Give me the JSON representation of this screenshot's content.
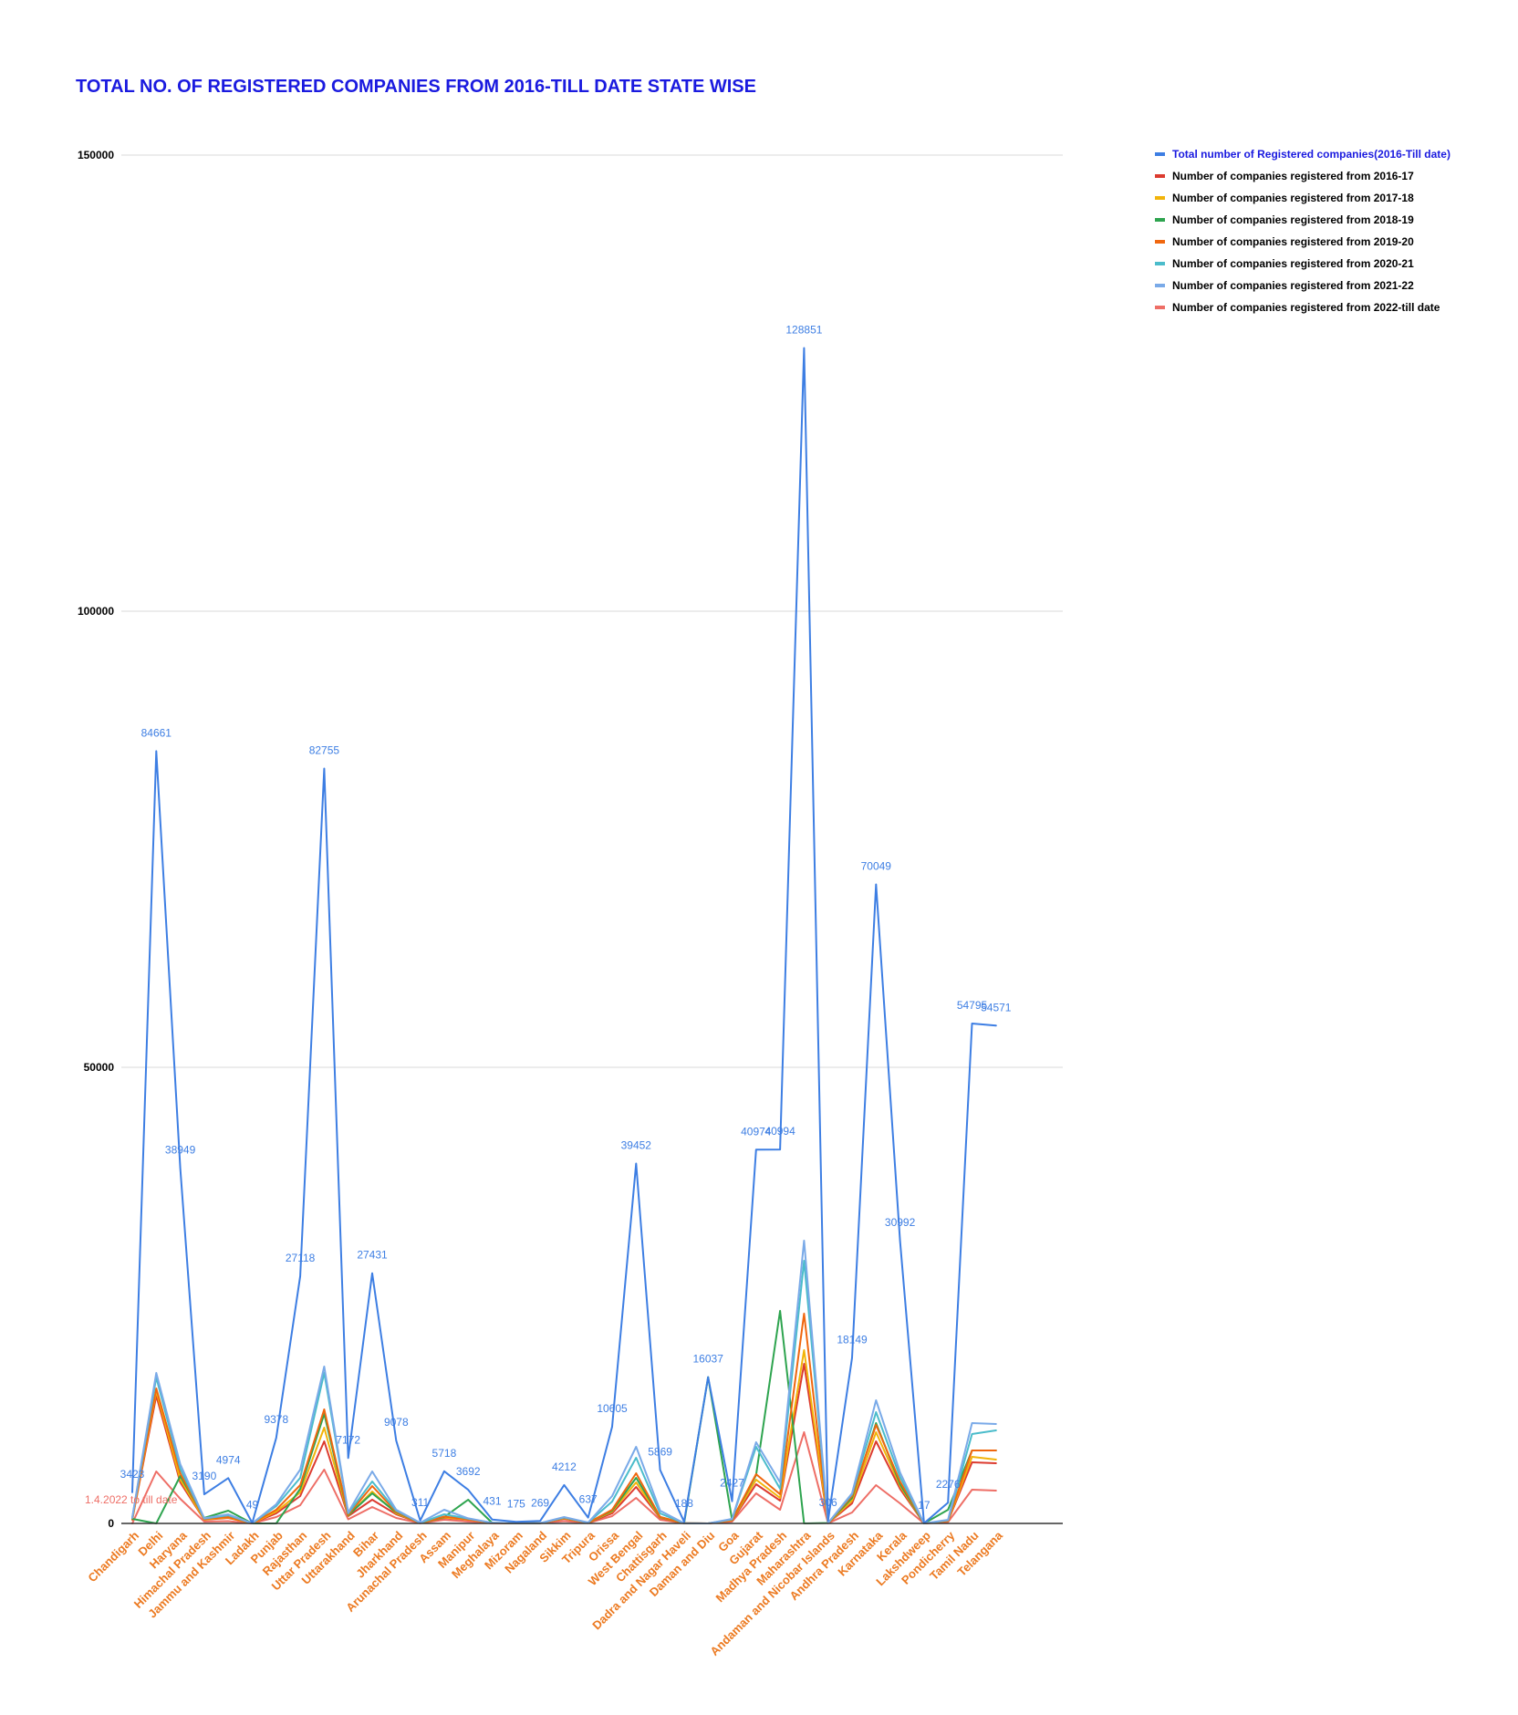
{
  "chart_data": {
    "type": "line",
    "title": "TOTAL NO. OF REGISTERED COMPANIES FROM 2016-TILL DATE STATE WISE",
    "ylim": [
      0,
      150000
    ],
    "yticks": [
      "0",
      "50000",
      "100000",
      "150000"
    ],
    "grid": true,
    "legend_position": "right-top",
    "colors": {
      "title": "#1a1adf",
      "xtick": "#ec7a21",
      "ytick": "#000000",
      "grid": "#d9d9d9",
      "axis": "#333333"
    },
    "categories": [
      "Chandigarh",
      "Delhi",
      "Haryana",
      "Himachal Pradesh",
      "Jammu and Kashmir",
      "Ladakh",
      "Punjab",
      "Rajasthan",
      "Uttar Pradesh",
      "Uttarakhand",
      "Bihar",
      "Jharkhand",
      "Arunachal Pradesh",
      "Assam",
      "Manipur",
      "Meghalaya",
      "Mizoram",
      "Nagaland",
      "Sikkim",
      "Tripura",
      "Orissa",
      "West Bengal",
      "Chattisgarh",
      "Dadra and Nagar Haveli",
      "Daman and Diu",
      "Goa",
      "Gujarat",
      "Madhya Pradesh",
      "Maharashtra",
      "Andaman and Nicobar Islands",
      "Andhra Pradesh",
      "Karnataka",
      "Kerala",
      "Lakshdweep",
      "Pondicherry",
      "Tamil Nadu",
      "Telangana"
    ],
    "series": [
      {
        "name": "Total number of Registered companies(2016-Till date)",
        "color": "#3d7ee3",
        "legend_text_color": "#1a1adf",
        "labels_shown": true,
        "values": [
          3423,
          84661,
          38949,
          3190,
          4974,
          49,
          9378,
          27118,
          82755,
          7172,
          27431,
          9078,
          311,
          5718,
          3692,
          431,
          175,
          269,
          4212,
          637,
          10605,
          39452,
          5869,
          188,
          16037,
          2427,
          40974,
          40994,
          128851,
          306,
          18149,
          70049,
          30992,
          17,
          2276,
          54795,
          54571
        ]
      },
      {
        "name": "Number of companies registered from 2016-17",
        "color": "#dc3b2f",
        "legend_text_color": "#000000",
        "values": [
          400,
          14000,
          4500,
          400,
          600,
          5,
          1100,
          3000,
          9000,
          800,
          2600,
          1000,
          40,
          600,
          400,
          50,
          20,
          30,
          500,
          70,
          1100,
          4000,
          600,
          20,
          0,
          300,
          4300,
          2500,
          17500,
          40,
          2200,
          9000,
          3800,
          2,
          250,
          6700,
          6600
        ]
      },
      {
        "name": "Number of companies registered from 2017-18",
        "color": "#f2b40a",
        "legend_text_color": "#000000",
        "values": [
          450,
          14500,
          4800,
          430,
          650,
          5,
          1300,
          3400,
          10500,
          850,
          3500,
          1100,
          45,
          650,
          420,
          55,
          20,
          30,
          550,
          75,
          1300,
          4500,
          650,
          20,
          0,
          350,
          4800,
          2800,
          19000,
          40,
          2500,
          10000,
          4100,
          2,
          270,
          7300,
          7000
        ]
      },
      {
        "name": "Number of companies registered from 2018-19",
        "color": "#2ea44f",
        "legend_text_color": "#000000",
        "values": [
          500,
          0,
          5200,
          600,
          1400,
          5,
          0,
          3800,
          12000,
          900,
          3300,
          1200,
          50,
          700,
          2600,
          60,
          20,
          30,
          600,
          80,
          1400,
          5000,
          700,
          20,
          16037,
          380,
          5300,
          23300,
          0,
          45,
          2800,
          11000,
          4300,
          2,
          1500,
          8000,
          8000
        ]
      },
      {
        "name": "Number of companies registered from 2019-20",
        "color": "#f0670f",
        "legend_text_color": "#000000",
        "values": [
          550,
          14800,
          5500,
          480,
          700,
          6,
          1500,
          4200,
          12500,
          950,
          4100,
          1250,
          50,
          750,
          450,
          60,
          22,
          32,
          600,
          85,
          1500,
          5500,
          720,
          22,
          0,
          400,
          5400,
          3200,
          23000,
          45,
          3000,
          10800,
          4600,
          2,
          300,
          8000,
          8000
        ]
      },
      {
        "name": "Number of companies registered from 2020-21",
        "color": "#4bbccb",
        "legend_text_color": "#000000",
        "values": [
          600,
          16000,
          6000,
          520,
          900,
          6,
          1900,
          5000,
          16500,
          1100,
          4600,
          1400,
          60,
          1000,
          520,
          70,
          25,
          35,
          650,
          90,
          2400,
          7200,
          1100,
          25,
          0,
          450,
          8400,
          3800,
          28800,
          50,
          3200,
          12200,
          5100,
          3,
          350,
          9800,
          10200
        ]
      },
      {
        "name": "Number of companies registered from 2021-22",
        "color": "#7aaae8",
        "legend_text_color": "#000000",
        "values": [
          650,
          16500,
          6500,
          560,
          1000,
          7,
          2100,
          5900,
          17200,
          1200,
          5700,
          1500,
          65,
          1500,
          560,
          75,
          25,
          38,
          700,
          95,
          3000,
          8400,
          1400,
          25,
          0,
          500,
          8900,
          4500,
          31000,
          55,
          3300,
          13500,
          5600,
          3,
          400,
          11000,
          10900
        ]
      },
      {
        "name": "Number of companies registered from 2022-till date",
        "color": "#ee6e66",
        "legend_text_color": "#000000",
        "labels_shown": true,
        "values": [
          0,
          5700,
          2700,
          200,
          250,
          3,
          700,
          2000,
          5900,
          450,
          1800,
          600,
          20,
          400,
          200,
          30,
          10,
          15,
          250,
          40,
          800,
          2800,
          400,
          10,
          0,
          200,
          3300,
          1500,
          10000,
          20,
          1200,
          4200,
          2200,
          1,
          150,
          3700,
          3600
        ]
      }
    ],
    "data_labels": [
      {
        "series": 0,
        "index": 0,
        "text": "3423"
      },
      {
        "series": 0,
        "index": 1,
        "text": "84661"
      },
      {
        "series": 0,
        "index": 2,
        "text": "38949"
      },
      {
        "series": 0,
        "index": 3,
        "text": "3190"
      },
      {
        "series": 0,
        "index": 4,
        "text": "4974"
      },
      {
        "series": 0,
        "index": 5,
        "text": "49"
      },
      {
        "series": 0,
        "index": 6,
        "text": "9378"
      },
      {
        "series": 0,
        "index": 7,
        "text": "27118"
      },
      {
        "series": 0,
        "index": 8,
        "text": "82755"
      },
      {
        "series": 0,
        "index": 9,
        "text": "7172"
      },
      {
        "series": 0,
        "index": 10,
        "text": "27431"
      },
      {
        "series": 0,
        "index": 11,
        "text": "9078"
      },
      {
        "series": 0,
        "index": 12,
        "text": "311"
      },
      {
        "series": 0,
        "index": 13,
        "text": "5718"
      },
      {
        "series": 0,
        "index": 14,
        "text": "3692"
      },
      {
        "series": 0,
        "index": 15,
        "text": "431"
      },
      {
        "series": 0,
        "index": 16,
        "text": "175"
      },
      {
        "series": 0,
        "index": 17,
        "text": "269"
      },
      {
        "series": 0,
        "index": 18,
        "text": "4212"
      },
      {
        "series": 0,
        "index": 19,
        "text": "637"
      },
      {
        "series": 0,
        "index": 20,
        "text": "10605"
      },
      {
        "series": 0,
        "index": 21,
        "text": "39452"
      },
      {
        "series": 0,
        "index": 22,
        "text": "5869"
      },
      {
        "series": 0,
        "index": 23,
        "text": "188"
      },
      {
        "series": 0,
        "index": 24,
        "text": "16037"
      },
      {
        "series": 0,
        "index": 25,
        "text": "2427"
      },
      {
        "series": 0,
        "index": 26,
        "text": "40974"
      },
      {
        "series": 0,
        "index": 27,
        "text": "40994"
      },
      {
        "series": 0,
        "index": 28,
        "text": "128851"
      },
      {
        "series": 0,
        "index": 29,
        "text": "306"
      },
      {
        "series": 0,
        "index": 30,
        "text": "18149"
      },
      {
        "series": 0,
        "index": 31,
        "text": "70049"
      },
      {
        "series": 0,
        "index": 32,
        "text": "30992"
      },
      {
        "series": 0,
        "index": 33,
        "text": "17"
      },
      {
        "series": 0,
        "index": 34,
        "text": "2276"
      },
      {
        "series": 0,
        "index": 35,
        "text": "54795"
      },
      {
        "series": 0,
        "index": 36,
        "text": "54571"
      },
      {
        "series": 7,
        "index": 0,
        "text": "1.4.2022 to till date"
      }
    ]
  }
}
